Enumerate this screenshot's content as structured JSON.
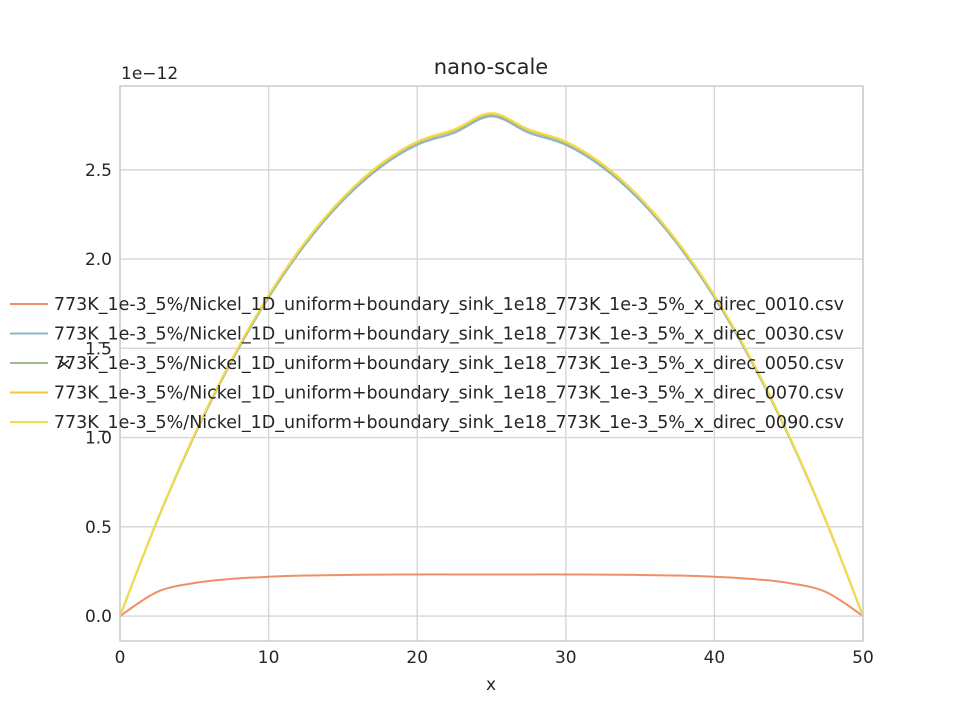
{
  "chart_data": {
    "type": "line",
    "title": "nano-scale",
    "xlabel": "x",
    "ylabel": "x",
    "xlim": [
      0,
      50
    ],
    "ylim": [
      -1.4e-13,
      2.97e-12
    ],
    "y_offset_label": "1e−12",
    "x_ticks": [
      0,
      10,
      20,
      30,
      40,
      50
    ],
    "x_tick_labels": [
      "0",
      "10",
      "20",
      "30",
      "40",
      "50"
    ],
    "y_ticks": [
      0,
      5e-13,
      1e-12,
      1.5e-12,
      2e-12,
      2.5e-12
    ],
    "y_tick_labels": [
      "0.0",
      "0.5",
      "1.0",
      "1.5",
      "2.0",
      "2.5"
    ],
    "grid": true,
    "legend_position": "center",
    "x": [
      0,
      2.5,
      5,
      7.5,
      10,
      12.5,
      15,
      17.5,
      20,
      22.5,
      25,
      27.5,
      30,
      32.5,
      35,
      37.5,
      40,
      42.5,
      45,
      47.5,
      50
    ],
    "series": [
      {
        "name": "773K_1e-3_5%/Nickel_1D_uniform+boundary_sink_1e18_773K_1e-3_5%_x_direc_0010.csv",
        "color": "#f28e66",
        "values": [
          0,
          1.35e-13,
          1.85e-13,
          2.08e-13,
          2.2e-13,
          2.27e-13,
          2.3e-13,
          2.32e-13,
          2.33e-13,
          2.33e-13,
          2.33e-13,
          2.33e-13,
          2.33e-13,
          2.32e-13,
          2.3e-13,
          2.27e-13,
          2.2e-13,
          2.08e-13,
          1.85e-13,
          1.35e-13,
          0
        ]
      },
      {
        "name": "773K_1e-3_5%/Nickel_1D_uniform+boundary_sink_1e18_773K_1e-3_5%_x_direc_0030.csv",
        "color": "#8fb4c9",
        "values": [
          0,
          5.33e-13,
          1.008e-12,
          1.425e-12,
          1.784e-12,
          2.085e-12,
          2.328e-12,
          2.513e-12,
          2.64e-12,
          2.708e-12,
          2.8e-12,
          2.708e-12,
          2.64e-12,
          2.513e-12,
          2.328e-12,
          2.085e-12,
          1.784e-12,
          1.425e-12,
          1.008e-12,
          5.33e-13,
          0
        ]
      },
      {
        "name": "773K_1e-3_5%/Nickel_1D_uniform+boundary_sink_1e18_773K_1e-3_5%_x_direc_0050.csv",
        "color": "#9fbc8a",
        "values": [
          0,
          5.35e-13,
          1.013e-12,
          1.432e-12,
          1.793e-12,
          2.095e-12,
          2.339e-12,
          2.525e-12,
          2.652e-12,
          2.72e-12,
          2.81e-12,
          2.72e-12,
          2.652e-12,
          2.525e-12,
          2.339e-12,
          2.095e-12,
          1.793e-12,
          1.432e-12,
          1.013e-12,
          5.35e-13,
          0
        ]
      },
      {
        "name": "773K_1e-3_5%/Nickel_1D_uniform+boundary_sink_1e18_773K_1e-3_5%_x_direc_0070.csv",
        "color": "#f5c63c",
        "values": [
          0,
          5.36e-13,
          1.015e-12,
          1.434e-12,
          1.796e-12,
          2.098e-12,
          2.342e-12,
          2.528e-12,
          2.656e-12,
          2.724e-12,
          2.815e-12,
          2.724e-12,
          2.656e-12,
          2.528e-12,
          2.342e-12,
          2.098e-12,
          1.796e-12,
          1.434e-12,
          1.015e-12,
          5.36e-13,
          0
        ]
      },
      {
        "name": "773K_1e-3_5%/Nickel_1D_uniform+boundary_sink_1e18_773K_1e-3_5%_x_direc_0090.csv",
        "color": "#f2dc4a",
        "values": [
          0,
          5.37e-13,
          1.016e-12,
          1.436e-12,
          1.798e-12,
          2.101e-12,
          2.345e-12,
          2.531e-12,
          2.659e-12,
          2.727e-12,
          2.818e-12,
          2.727e-12,
          2.659e-12,
          2.531e-12,
          2.345e-12,
          2.101e-12,
          1.798e-12,
          1.436e-12,
          1.016e-12,
          5.37e-13,
          0
        ]
      }
    ]
  }
}
